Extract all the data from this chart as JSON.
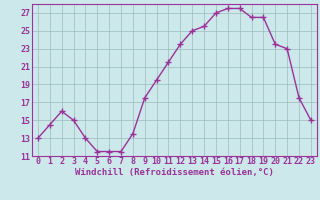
{
  "x": [
    0,
    1,
    2,
    3,
    4,
    5,
    6,
    7,
    8,
    9,
    10,
    11,
    12,
    13,
    14,
    15,
    16,
    17,
    18,
    19,
    20,
    21,
    22,
    23
  ],
  "y": [
    13,
    14.5,
    16,
    15,
    13,
    11.5,
    11.5,
    11.5,
    13.5,
    17.5,
    19.5,
    21.5,
    23.5,
    25.0,
    25.5,
    27.0,
    27.5,
    27.5,
    26.5,
    26.5,
    23.5,
    23.0,
    17.5,
    15.0
  ],
  "xlabel": "Windchill (Refroidissement éolien,°C)",
  "ylim": [
    11,
    28
  ],
  "xlim": [
    -0.5,
    23.5
  ],
  "yticks": [
    11,
    13,
    15,
    17,
    19,
    21,
    23,
    25,
    27
  ],
  "xticks": [
    0,
    1,
    2,
    3,
    4,
    5,
    6,
    7,
    8,
    9,
    10,
    11,
    12,
    13,
    14,
    15,
    16,
    17,
    18,
    19,
    20,
    21,
    22,
    23
  ],
  "line_color": "#993399",
  "bg_color": "#cce8ea",
  "grid_color": "#99bbbb",
  "marker": "+",
  "linewidth": 1.0,
  "markersize": 4,
  "markeredgewidth": 1.0,
  "xlabel_fontsize": 6.5,
  "tick_fontsize": 6.0,
  "label_color": "#993399"
}
